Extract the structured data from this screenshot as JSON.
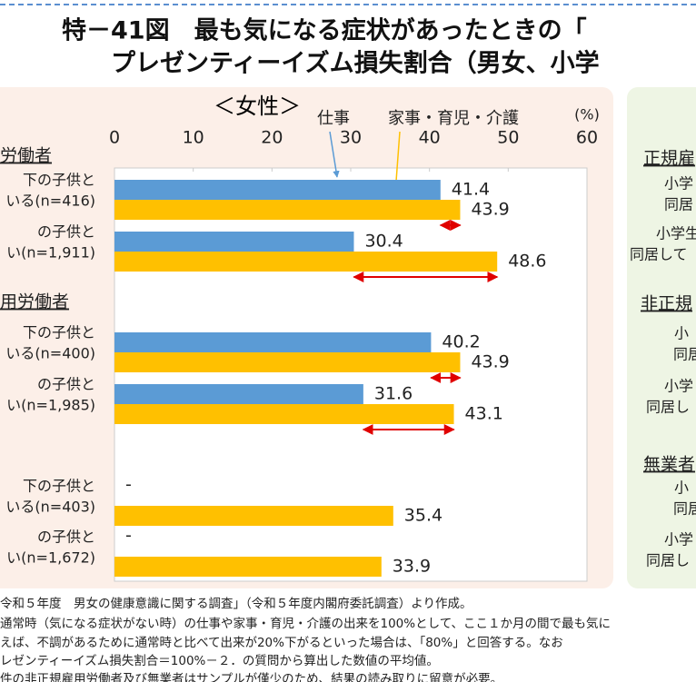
{
  "chart_data": {
    "type": "bar",
    "orientation": "horizontal",
    "title_lines": [
      "特－41図　最も気になる症状があったときの「",
      "プレゼンティーイズム損失割合（男女、小学"
    ],
    "subtitle": "＜女性＞",
    "unit_label": "(%)",
    "group_labels": [
      "労働者",
      "用労働者"
    ],
    "categories": [
      [
        "下の子供と",
        "いる(n=416)"
      ],
      [
        "の子供と",
        "い(n=1,911)"
      ],
      [
        "下の子供と",
        "いる(n=400)"
      ],
      [
        "の子供と",
        "い(n=1,985)"
      ],
      [
        "下の子供と",
        "いる(n=403)"
      ],
      [
        "の子供と",
        "い(n=1,672)"
      ]
    ],
    "series": [
      {
        "name": "仕事",
        "color": "#5b9bd5",
        "values": [
          41.4,
          30.4,
          40.2,
          31.6,
          null,
          null
        ],
        "value_labels": [
          "41.4",
          "30.4",
          "40.2",
          "31.6",
          "-",
          "-"
        ]
      },
      {
        "name": "家事・育児・介護",
        "color": "#ffc000",
        "values": [
          43.9,
          48.6,
          43.9,
          43.1,
          35.4,
          33.9
        ]
      }
    ],
    "xlim": [
      0,
      60
    ],
    "xticks": [
      0,
      10,
      20,
      30,
      40,
      50,
      60
    ]
  },
  "right_panel": [
    "正規雇",
    "小学",
    "同居",
    "小学生",
    "同居して",
    "非正規",
    "小",
    "同居",
    "小学",
    "同居し",
    "無業者",
    "小",
    "同居",
    "小学",
    "同居し"
  ],
  "notes": [
    "令和５年度　男女の健康意識に関する調査」（令和５年度内閣府委託調査）より作成。",
    "通常時（気になる症状がない時）の仕事や家事・育児・介護の出来を100%として、ここ１か月の間で最も気に",
    "えば、不調があるために通常時と比べて出来が20%下がるといった場合は、「80%」と回答する。なお",
    "レゼンティーイズム損失割合＝100%－２．の質問から算出した数値の平均値。",
    "件の非正規雇用労働者及び無業者はサンプルが僅少のため、結果の読み取りに留意が必要。"
  ]
}
